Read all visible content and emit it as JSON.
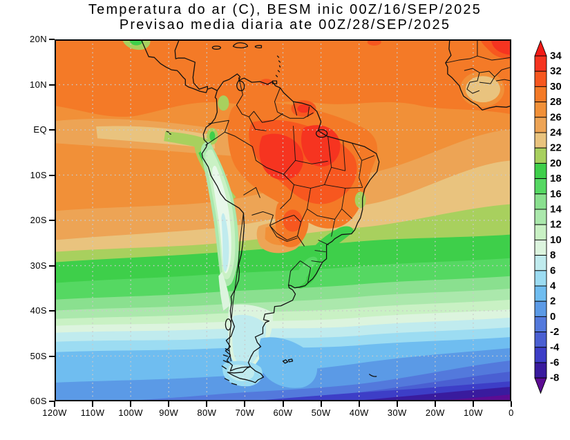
{
  "title": {
    "line1": "Temperatura do ar (C), BESM inic 00Z/16/SEP/2025",
    "line2": "Previsao media diaria ate 00Z/28/SEP/2025"
  },
  "axes": {
    "lat_ticks": [
      "20N",
      "10N",
      "EQ",
      "10S",
      "20S",
      "30S",
      "40S",
      "50S",
      "60S"
    ],
    "lon_ticks": [
      "120W",
      "110W",
      "100W",
      "90W",
      "80W",
      "70W",
      "60W",
      "50W",
      "40W",
      "30W",
      "20W",
      "10W",
      "0"
    ]
  },
  "colorbar": {
    "labels": [
      "34",
      "32",
      "30",
      "28",
      "26",
      "24",
      "22",
      "20",
      "18",
      "16",
      "14",
      "12",
      "10",
      "8",
      "6",
      "4",
      "2",
      "0",
      "-2",
      "-4",
      "-6",
      "-8"
    ]
  },
  "chart_data": {
    "type": "heatmap",
    "subtype": "filled-contour-map",
    "title": "Temperatura do ar (C), BESM inic 00Z/16/SEP/2025",
    "subtitle": "Previsao media diaria ate 00Z/28/SEP/2025",
    "variable": "Temperatura do ar",
    "units": "C",
    "model": "BESM",
    "init_time": "00Z/16/SEP/2025",
    "valid_until": "00Z/28/SEP/2025",
    "lon_range_deg": [
      -120,
      0
    ],
    "lat_range_deg": [
      -60,
      20
    ],
    "contour_interval_c": 2,
    "levels_c": [
      -8,
      -6,
      -4,
      -2,
      0,
      2,
      4,
      6,
      8,
      10,
      12,
      14,
      16,
      18,
      20,
      22,
      24,
      26,
      28,
      30,
      32,
      34
    ],
    "grid": "dotted 10-degree graticule",
    "legend_position": "right",
    "palette_hex": {
      "gt_max_arrow": "#f31a16",
      "segments_top_to_bottom": [
        "#f63420",
        "#f7571f",
        "#f47a27",
        "#f19038",
        "#eda455",
        "#e9c37e",
        "#a8d05e",
        "#3ecf4a",
        "#55d862",
        "#8ae08f",
        "#abe8ac",
        "#c9f1c4",
        "#dcf4de",
        "#c0ebee",
        "#9cdcf2",
        "#6fbdf0",
        "#5b9ae6",
        "#5379dc",
        "#4a5fd2",
        "#3d3ec7",
        "#391b9e"
      ],
      "lt_min_arrow": "#5c0c93"
    },
    "zonal_surface_values_c": [
      {
        "lat": "20N",
        "approx_temp_c": 28
      },
      {
        "lat": "10N",
        "approx_temp_c": 27
      },
      {
        "lat": "EQ",
        "approx_temp_c": 26
      },
      {
        "lat": "10S",
        "approx_temp_c": 26
      },
      {
        "lat": "20S",
        "approx_temp_c": 24
      },
      {
        "lat": "30S",
        "approx_temp_c": 18
      },
      {
        "lat": "40S",
        "approx_temp_c": 11
      },
      {
        "lat": "50S",
        "approx_temp_c": 4
      },
      {
        "lat": "60S",
        "approx_temp_c": -2
      }
    ],
    "notable_features": [
      {
        "feature": "warm core over Amazonia / central Brazil",
        "approx_lon": -60,
        "approx_lat": -8,
        "approx_temp_c": 33
      },
      {
        "feature": "warm spot over West Africa (Sahel), top-right corner",
        "approx_lon": -6,
        "approx_lat": 17,
        "approx_temp_c": 33
      },
      {
        "feature": "cool tongue along Andes / altiplano",
        "approx_lon": -69,
        "approx_lat": -18,
        "approx_temp_c": 9
      },
      {
        "feature": "equatorial Pacific cold tongue",
        "approx_lon": -95,
        "approx_lat": -3,
        "approx_temp_c": 23
      },
      {
        "feature": "cool Patagonia",
        "approx_lon": -70,
        "approx_lat": -47,
        "approx_temp_c": 7
      },
      {
        "feature": "coldest ocean, southeast corner of domain",
        "approx_lon": -8,
        "approx_lat": -59,
        "approx_temp_c": -8
      }
    ]
  }
}
